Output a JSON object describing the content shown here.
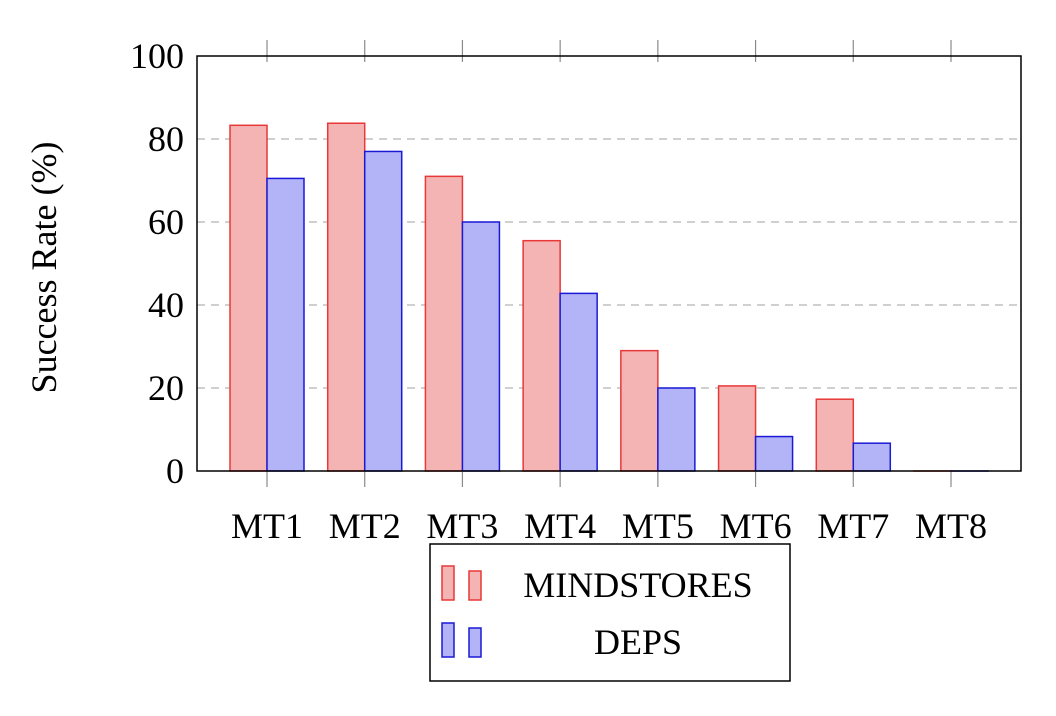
{
  "chart_data": {
    "type": "bar",
    "title": "",
    "xlabel": "",
    "ylabel": "Success Rate (%)",
    "ylim": [
      0,
      100
    ],
    "yticks": [
      0,
      20,
      40,
      60,
      80,
      100
    ],
    "ytick_labels": [
      "0",
      "20",
      "40",
      "60",
      "80",
      "100"
    ],
    "categories": [
      "MT1",
      "MT2",
      "MT3",
      "MT4",
      "MT5",
      "MT6",
      "MT7",
      "MT8"
    ],
    "series": [
      {
        "name": "MINDSTORES",
        "values": [
          83.3,
          83.8,
          71.0,
          55.5,
          29.0,
          20.5,
          17.3,
          0
        ],
        "color": "#f4b4b4",
        "stroke": "#e83838"
      },
      {
        "name": "DEPS",
        "values": [
          70.5,
          77.0,
          60.0,
          42.8,
          20.0,
          8.3,
          6.7,
          0
        ],
        "color": "#b3b3f8",
        "stroke": "#1a1ad6"
      }
    ],
    "grid": "horizontal dashed",
    "legend_position": "bottom-center"
  }
}
